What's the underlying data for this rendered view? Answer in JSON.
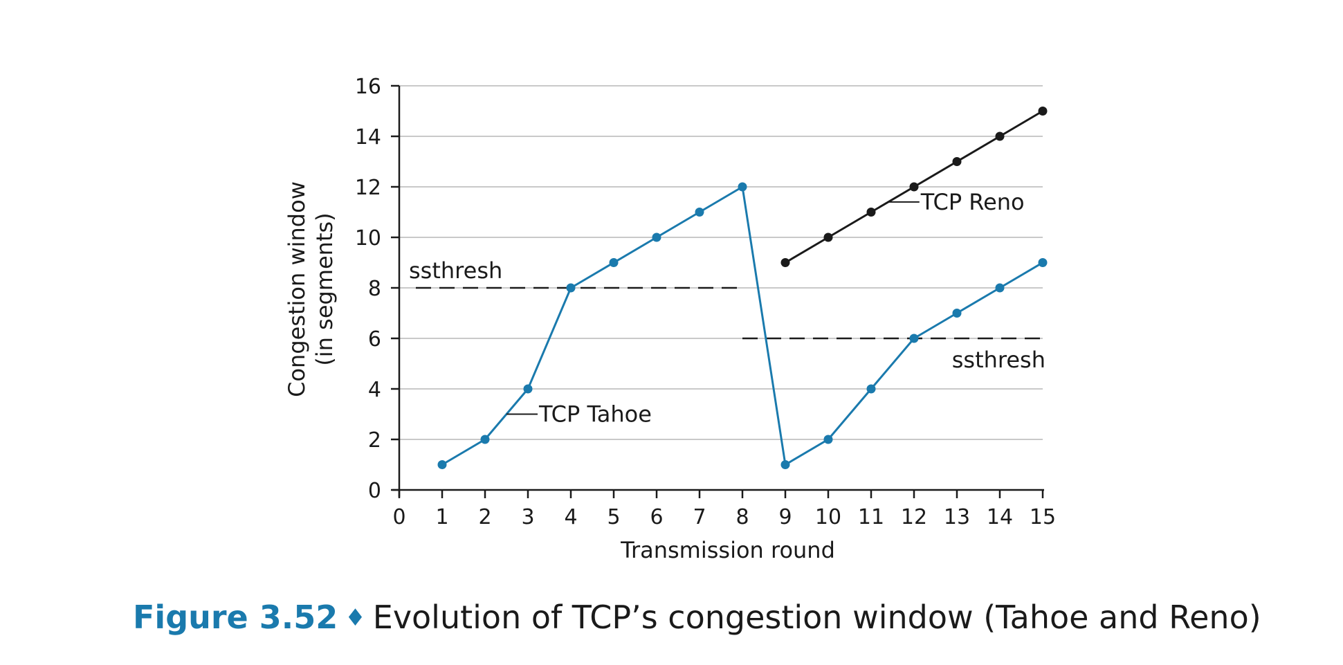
{
  "chart_data": {
    "type": "line",
    "title": "",
    "xlabel": "Transmission round",
    "ylabel": [
      "Congestion window",
      "(in segments)"
    ],
    "xlim": [
      0,
      15
    ],
    "ylim": [
      0,
      16
    ],
    "x_ticks": [
      0,
      1,
      2,
      3,
      4,
      5,
      6,
      7,
      8,
      9,
      10,
      11,
      12,
      13,
      14,
      15
    ],
    "y_ticks": [
      0,
      2,
      4,
      6,
      8,
      10,
      12,
      14,
      16
    ],
    "grid": true,
    "series": [
      {
        "name": "TCP Tahoe",
        "color": "#1a7aad",
        "points": [
          [
            1,
            1
          ],
          [
            2,
            2
          ],
          [
            3,
            4
          ],
          [
            4,
            8
          ],
          [
            5,
            9
          ],
          [
            6,
            10
          ],
          [
            7,
            11
          ],
          [
            8,
            12
          ],
          [
            9,
            1
          ],
          [
            10,
            2
          ],
          [
            11,
            4
          ],
          [
            12,
            6
          ],
          [
            13,
            7
          ],
          [
            14,
            8
          ],
          [
            15,
            9
          ]
        ]
      },
      {
        "name": "TCP Reno",
        "color": "#1a1a1a",
        "points": [
          [
            9,
            9
          ],
          [
            10,
            10
          ],
          [
            11,
            11
          ],
          [
            12,
            12
          ],
          [
            13,
            13
          ],
          [
            14,
            14
          ],
          [
            15,
            15
          ]
        ]
      }
    ],
    "thresholds": [
      {
        "label": "ssthresh",
        "y": 8,
        "x_range": [
          0,
          8
        ]
      },
      {
        "label": "ssthresh",
        "y": 6,
        "x_range": [
          8,
          15
        ]
      }
    ],
    "series_labels": [
      {
        "text": "TCP Tahoe",
        "anchor": [
          2.5,
          3
        ]
      },
      {
        "text": "TCP Reno",
        "anchor": [
          11.4,
          11.4
        ]
      }
    ]
  },
  "caption": {
    "figure_number": "Figure 3.52",
    "separator": "♦",
    "text": "Evolution of TCP’s congestion window (Tahoe and Reno)"
  }
}
